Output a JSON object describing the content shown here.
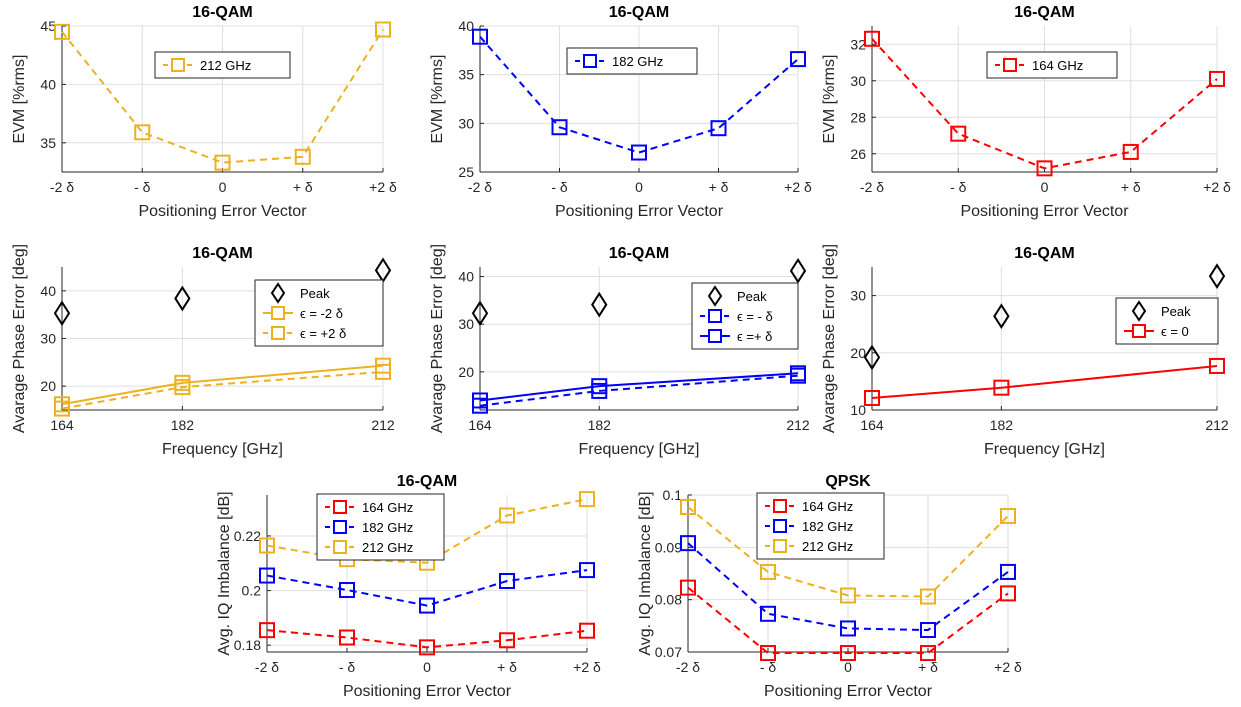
{
  "colors": {
    "s164": "#ff0000",
    "s182": "#0000ff",
    "s212": "#edb120",
    "peak": "#000000"
  },
  "chart_data": [
    {
      "id": "p1",
      "type": "line",
      "title": "16-QAM",
      "xlabel": "Positioning Error Vector",
      "ylabel": "EVM [%rms]",
      "categories": [
        "-2 δ",
        "- δ",
        "0",
        "+ δ",
        "+2 δ"
      ],
      "ylim": [
        32.5,
        45
      ],
      "yticks": [
        35,
        40,
        45
      ],
      "grid": true,
      "legend": {
        "position": "top"
      },
      "series": [
        {
          "name": "212 GHz",
          "color": "#edb120",
          "dash": true,
          "marker": "square",
          "values": [
            44.5,
            35.9,
            33.3,
            33.8,
            44.7
          ]
        }
      ]
    },
    {
      "id": "p2",
      "type": "line",
      "title": "16-QAM",
      "xlabel": "Positioning Error Vector",
      "ylabel": "EVM [%rms]",
      "categories": [
        "-2 δ",
        "- δ",
        "0",
        "+ δ",
        "+2 δ"
      ],
      "ylim": [
        25,
        40
      ],
      "yticks": [
        25,
        30,
        35,
        40
      ],
      "grid": true,
      "legend": {
        "position": "top-left"
      },
      "series": [
        {
          "name": "182 GHz",
          "color": "#0000ff",
          "dash": true,
          "marker": "square",
          "values": [
            38.9,
            29.6,
            27.0,
            29.5,
            36.6
          ]
        }
      ]
    },
    {
      "id": "p3",
      "type": "line",
      "title": "16-QAM",
      "xlabel": "Positioning Error Vector",
      "ylabel": "EVM [%rms]",
      "categories": [
        "-2 δ",
        "- δ",
        "0",
        "+ δ",
        "+2 δ"
      ],
      "ylim": [
        25,
        33
      ],
      "yticks": [
        26,
        28,
        30,
        32
      ],
      "grid": true,
      "legend": {
        "position": "top-left"
      },
      "series": [
        {
          "name": "164 GHz",
          "color": "#ff0000",
          "dash": true,
          "marker": "square",
          "values": [
            32.3,
            27.1,
            25.2,
            26.1,
            30.1
          ]
        }
      ]
    },
    {
      "id": "p4",
      "type": "line",
      "title": "16-QAM",
      "xlabel": "Frequency [GHz]",
      "ylabel": "Avarage Phase Error [deg]",
      "x": [
        164,
        182,
        212
      ],
      "xticks": [
        164,
        182,
        212
      ],
      "ylim": [
        15,
        45
      ],
      "yticks": [
        20,
        30,
        40
      ],
      "grid": true,
      "legend": {
        "position": "right"
      },
      "peak": {
        "name": "Peak",
        "values": [
          35.3,
          38.4,
          44.3
        ]
      },
      "series": [
        {
          "name": "ϵ = -2 δ",
          "color": "#edb120",
          "dash": false,
          "marker": "square",
          "values": [
            16.2,
            20.7,
            24.3
          ]
        },
        {
          "name": "ϵ = +2 δ",
          "color": "#edb120",
          "dash": true,
          "marker": "square",
          "values": [
            15.3,
            19.8,
            23.0
          ]
        }
      ]
    },
    {
      "id": "p5",
      "type": "line",
      "title": "16-QAM",
      "xlabel": "Frequency [GHz]",
      "ylabel": "Avarage Phase Error [deg]",
      "x": [
        164,
        182,
        212
      ],
      "xticks": [
        164,
        182,
        212
      ],
      "ylim": [
        12,
        42
      ],
      "yticks": [
        20,
        30,
        40
      ],
      "grid": true,
      "legend": {
        "position": "right"
      },
      "peak": {
        "name": "Peak",
        "values": [
          32.3,
          34.1,
          41.2
        ]
      },
      "series": [
        {
          "name": "ϵ = - δ",
          "color": "#0000ff",
          "dash": true,
          "marker": "square",
          "values": [
            12.9,
            16.0,
            19.2
          ]
        },
        {
          "name": "ϵ =+ δ",
          "color": "#0000ff",
          "dash": false,
          "marker": "square",
          "values": [
            14.0,
            17.0,
            19.7
          ]
        }
      ]
    },
    {
      "id": "p6",
      "type": "line",
      "title": "16-QAM",
      "xlabel": "Frequency [GHz]",
      "ylabel": "Avarage Phase Error [deg]",
      "x": [
        164,
        182,
        212
      ],
      "xticks": [
        164,
        182,
        212
      ],
      "ylim": [
        10,
        35
      ],
      "yticks": [
        10,
        20,
        30
      ],
      "grid": true,
      "legend": {
        "position": "right"
      },
      "peak": {
        "name": "Peak",
        "values": [
          19.2,
          26.4,
          33.4
        ]
      },
      "series": [
        {
          "name": "ϵ = 0",
          "color": "#ff0000",
          "dash": false,
          "marker": "square",
          "values": [
            12.1,
            13.9,
            17.7
          ]
        }
      ]
    },
    {
      "id": "p7",
      "type": "line",
      "title": "16-QAM",
      "xlabel": "Positioning Error Vector",
      "ylabel": "Avg. IQ Imbalance [dB]",
      "categories": [
        "-2 δ",
        "- δ",
        "0",
        "+ δ",
        "+2 δ"
      ],
      "ylim": [
        0.1775,
        0.235
      ],
      "yticks": [
        0.18,
        0.2,
        0.22
      ],
      "yticklabels": [
        "0.18",
        "0.2",
        "0.22"
      ],
      "grid": true,
      "legend": {
        "position": "top-left"
      },
      "series": [
        {
          "name": "164 GHz",
          "color": "#ff0000",
          "dash": true,
          "marker": "square",
          "values": [
            0.1855,
            0.1828,
            0.1792,
            0.1818,
            0.1853
          ]
        },
        {
          "name": "182 GHz",
          "color": "#0000ff",
          "dash": true,
          "marker": "square",
          "values": [
            0.2055,
            0.2002,
            0.1945,
            0.2035,
            0.2075
          ]
        },
        {
          "name": "212 GHz",
          "color": "#edb120",
          "dash": true,
          "marker": "square",
          "values": [
            0.2165,
            0.2115,
            0.2102,
            0.2275,
            0.2335
          ]
        }
      ]
    },
    {
      "id": "p8",
      "type": "line",
      "title": "QPSK",
      "xlabel": "Positioning Error Vector",
      "ylabel": "Avg. IQ Imbalance [dB]",
      "categories": [
        "-2 δ",
        "- δ",
        "0",
        "+ δ",
        "+2 δ"
      ],
      "ylim": [
        0.07,
        0.1
      ],
      "yticks": [
        0.07,
        0.08,
        0.09,
        0.1
      ],
      "yticklabels": [
        "0.07",
        "0.08",
        "0.09",
        "0.1"
      ],
      "grid": true,
      "legend": {
        "position": "top-left"
      },
      "series": [
        {
          "name": "164 GHz",
          "color": "#ff0000",
          "dash": true,
          "marker": "square",
          "values": [
            0.0823,
            0.0698,
            0.0698,
            0.0698,
            0.0812
          ]
        },
        {
          "name": "182 GHz",
          "color": "#0000ff",
          "dash": true,
          "marker": "square",
          "values": [
            0.0908,
            0.0773,
            0.0745,
            0.0742,
            0.0853
          ]
        },
        {
          "name": "212 GHz",
          "color": "#edb120",
          "dash": true,
          "marker": "square",
          "values": [
            0.0977,
            0.0853,
            0.0808,
            0.0806,
            0.096
          ]
        }
      ]
    }
  ]
}
